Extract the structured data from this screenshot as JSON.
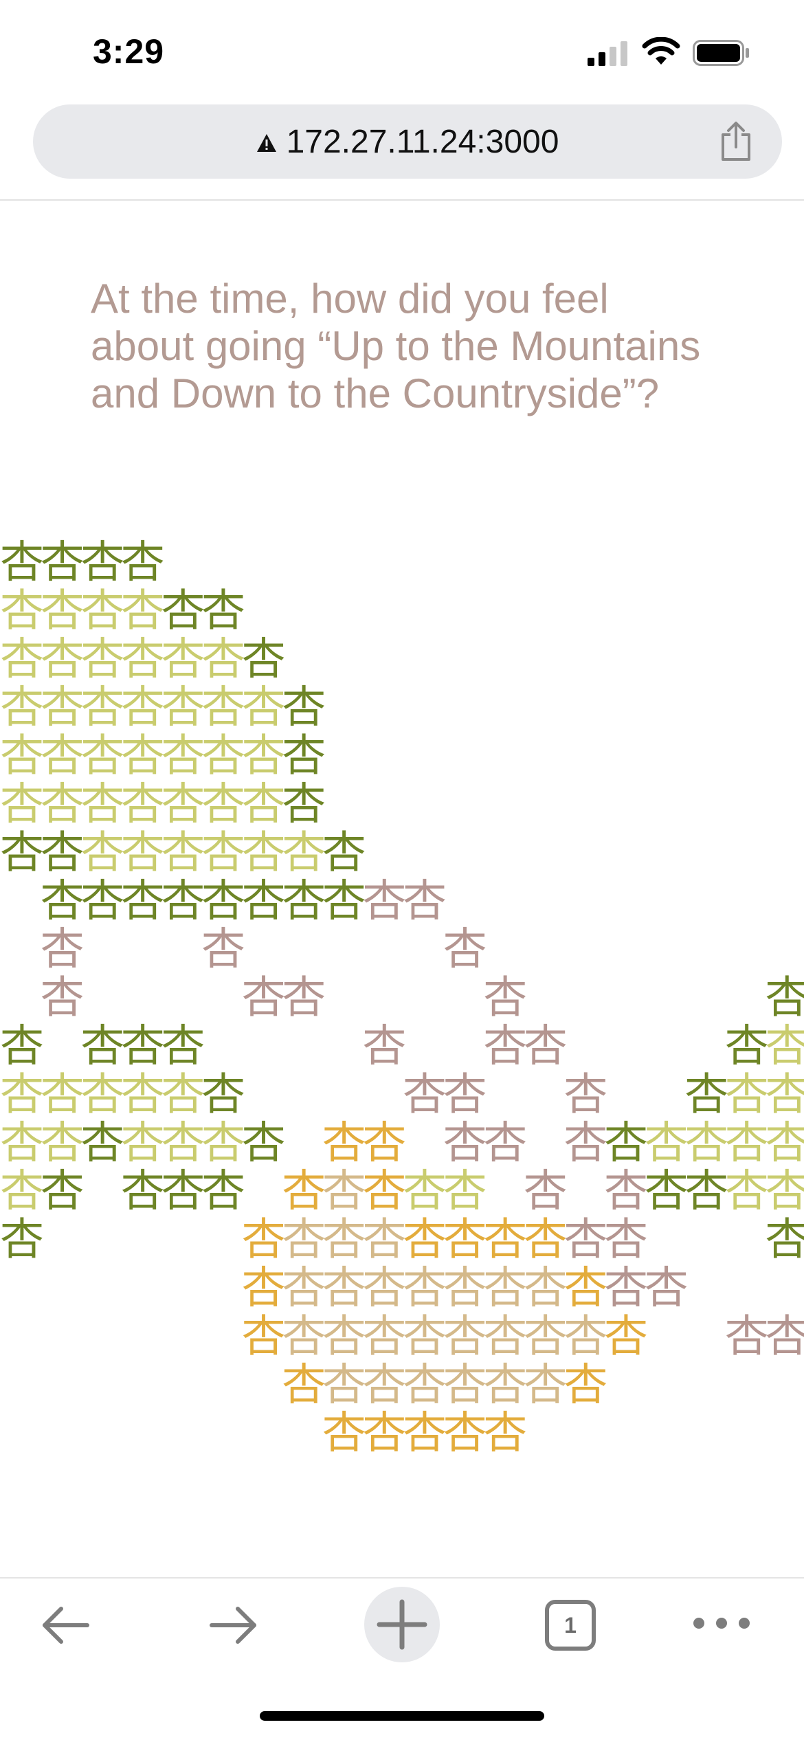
{
  "status_bar": {
    "time": "3:29",
    "icons": [
      "cellular-signal-icon",
      "wifi-icon",
      "battery-icon"
    ]
  },
  "browser": {
    "url": "172.27.11.24:3000",
    "security_icon": "warning-triangle-icon",
    "share_icon": "share-icon"
  },
  "content": {
    "question": "At the time, how did you feel about going “Up to the Mountains and Down to the Countryside”?",
    "glyph": "杏",
    "palette": {
      "lime": "#c9cc6e",
      "olive": "#6e8526",
      "mauve": "#b49590",
      "tan": "#d4b98a",
      "gold": "#e3ac3c"
    }
  },
  "toolbar": {
    "back_icon": "arrow-left-icon",
    "forward_icon": "arrow-right-icon",
    "new_tab_icon": "plus-icon",
    "tab_count": "1",
    "more_icon": "more-horizontal-icon"
  }
}
